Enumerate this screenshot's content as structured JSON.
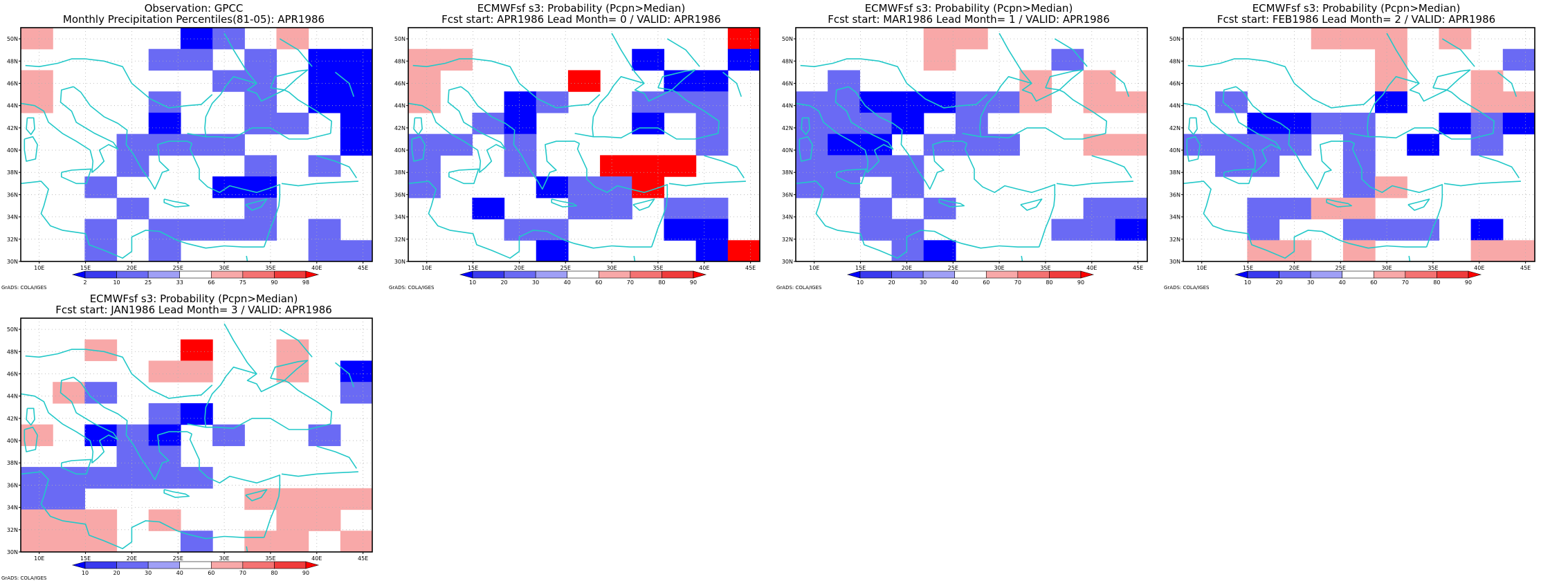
{
  "colors": {
    "coast": "#22c8c8",
    "frame": "#000000",
    "grid": "#b0b0b0",
    "bins_blue": [
      "#0000ff",
      "#3a3aee",
      "#6a6af4",
      "#9f9ff6"
    ],
    "bins_red": [
      "#f8a8a8",
      "#f47272",
      "#ef3c3c",
      "#ff0000"
    ]
  },
  "lon_labels": [
    "10E",
    "15E",
    "20E",
    "25E",
    "30E",
    "35E",
    "40E",
    "45E"
  ],
  "lat_labels": [
    "30N",
    "32N",
    "34N",
    "36N",
    "38N",
    "40N",
    "42N",
    "44N",
    "46N",
    "48N",
    "50N"
  ],
  "footer": "GrADS: COLA/IGES",
  "panels": [
    {
      "title1": "Observation: GPCC",
      "title2": "Monthly Precipitation Percentiles(81-05): APR1986",
      "colorbar_labels": [
        "2",
        "10",
        "25",
        "33",
        "66",
        "75",
        "90",
        "98"
      ],
      "grid": [
        "R....BC.R..",
        "....CC.C.BB",
        "R.....CC.BB",
        "R...C..C.BB",
        "....B..CC.B",
        "...CCCC...B",
        "...C...C.C.",
        "..C...BB...",
        "...C...C...",
        "..C.CCCC.C.",
        "..C.C....CC"
      ]
    },
    {
      "title1": "ECMWFsf s3: Probability (Pcpn>Median)",
      "title2": "Fcst start: APR1986   Lead Month= 0 / VALID: APR1986",
      "colorbar_labels": [
        "10",
        "20",
        "30",
        "40",
        "60",
        "70",
        "80",
        "90"
      ],
      "grid": [
        "..........A",
        "RR.....B..B",
        "R....A..BB.",
        "R..BC..CCC.",
        "..CB...B.C.",
        "CC.C.....C.",
        "C..C..AAA..",
        "C...BCCA...",
        "..B..CC.CC.",
        "...CC...BB.",
        "....B....BA"
      ]
    },
    {
      "title1": "ECMWFsf s3: Probability (Pcpn>Median)",
      "title2": "Fcst start: MAR1986   Lead Month= 1 / VALID: APR1986",
      "colorbar_labels": [
        "10",
        "20",
        "30",
        "40",
        "60",
        "70",
        "80",
        "90"
      ],
      "grid": [
        "....RR.....",
        "....R...C..",
        ".C.....R.R.",
        "CCBBBCCR.RR",
        "CCCB.C.....",
        "CBB.CCC..RR",
        "CCCC.......",
        "CC.C.......",
        "..C.C....CC",
        "..CC....CCB",
        "...CB......"
      ]
    },
    {
      "title1": "ECMWFsf s3: Probability (Pcpn>Median)",
      "title2": "Fcst start: FEB1986   Lead Month= 2 / VALID: APR1986",
      "colorbar_labels": [
        "10",
        "20",
        "30",
        "40",
        "60",
        "70",
        "80",
        "90"
      ],
      "grid": [
        "....RRR.R..",
        "......R...C",
        "......R..R.",
        ".C....B..RR",
        "..BBCC..BCB",
        "CCCC.C.B.C.",
        ".CC..C.....",
        ".....CR....",
        "..CCRR.....",
        "..C..CCC.B.",
        "..RR.R...RR"
      ]
    },
    {
      "title1": "ECMWFsf s3: Probability (Pcpn>Median)",
      "title2": "Fcst start: JAN1986   Lead Month= 3 / VALID: APR1986",
      "colorbar_labels": [
        "10",
        "20",
        "30",
        "40",
        "60",
        "70",
        "80",
        "90"
      ],
      "grid": [
        "...........",
        "..R..A..R..",
        "....RR..R.B",
        ".RC.......C",
        "....CB.....",
        "R.BCB.C..C.",
        "...CC......",
        "CCCCCC.....",
        "CC.....RRRR",
        "RRR.R...RR.",
        "RRR..C.RR.R"
      ]
    }
  ]
}
